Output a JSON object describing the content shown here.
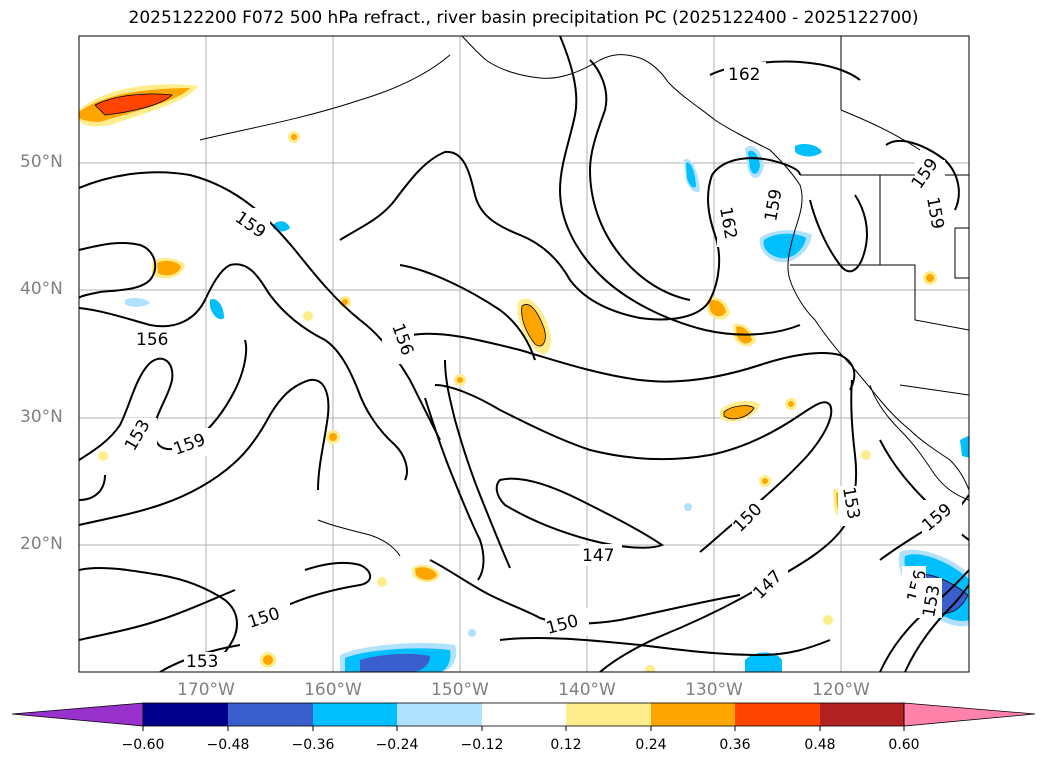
{
  "title": "2025122200 F072 500 hPa refract., river basin precipitation PC (2025122400 - 2025122700)",
  "lat_labels": [
    "50°N",
    "40°N",
    "30°N",
    "20°N"
  ],
  "lon_labels": [
    "170°W",
    "160°W",
    "150°W",
    "140°W",
    "130°W",
    "120°W"
  ],
  "contour_labels": {
    "c162a": "162",
    "c162b": "162",
    "c159a": "159",
    "c159b": "159",
    "c159c": "159",
    "c159d": "159",
    "c159e": "159",
    "c159f": "159",
    "c156a": "156",
    "c156b": "156",
    "c156c": "156",
    "c153a": "153",
    "c153b": "153",
    "c153c": "153",
    "c153d": "153",
    "c150a": "150",
    "c150b": "150",
    "c150c": "150",
    "c147a": "147",
    "c147b": "147"
  },
  "colorbar": {
    "ticks": [
      "−0.60",
      "−0.48",
      "−0.36",
      "−0.24",
      "−0.12",
      "0.12",
      "0.24",
      "0.36",
      "0.48",
      "0.60"
    ],
    "colors": [
      "#9932cc",
      "#00008b",
      "#3a5fcd",
      "#00bfff",
      "#b0e2ff",
      "#ffffff",
      "#ffec8b",
      "#ffa500",
      "#ff4500",
      "#b22222",
      "#ff82ab"
    ]
  }
}
